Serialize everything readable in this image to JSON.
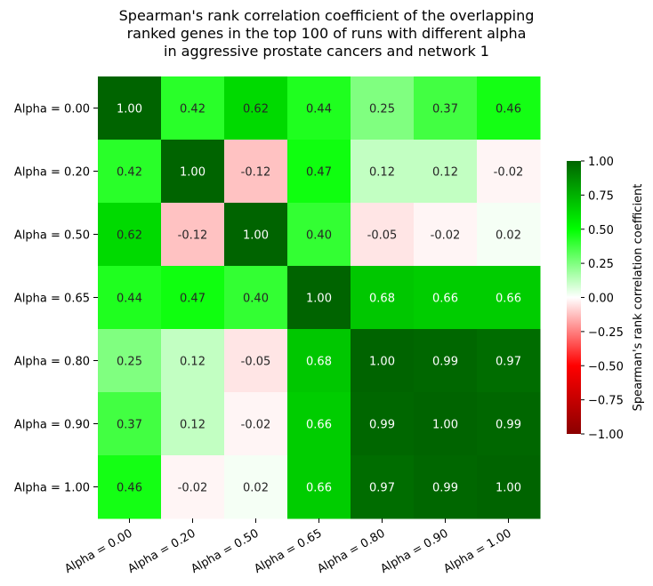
{
  "chart_data": {
    "type": "heatmap",
    "title_lines": [
      "Spearman's rank correlation coefficient of the overlapping",
      "ranked genes in the top 100 of runs with different alpha",
      "in aggressive prostate cancers and network 1"
    ],
    "row_labels": [
      "Alpha = 0.00",
      "Alpha = 0.20",
      "Alpha = 0.50",
      "Alpha = 0.65",
      "Alpha = 0.80",
      "Alpha = 0.90",
      "Alpha = 1.00"
    ],
    "col_labels": [
      "Alpha = 0.00",
      "Alpha = 0.20",
      "Alpha = 0.50",
      "Alpha = 0.65",
      "Alpha = 0.80",
      "Alpha = 0.90",
      "Alpha = 1.00"
    ],
    "values": [
      [
        1.0,
        0.42,
        0.62,
        0.44,
        0.25,
        0.37,
        0.46
      ],
      [
        0.42,
        1.0,
        -0.12,
        0.47,
        0.12,
        0.12,
        -0.02
      ],
      [
        0.62,
        -0.12,
        1.0,
        0.4,
        -0.05,
        -0.02,
        0.02
      ],
      [
        0.44,
        0.47,
        0.4,
        1.0,
        0.68,
        0.66,
        0.66
      ],
      [
        0.25,
        0.12,
        -0.05,
        0.68,
        1.0,
        0.99,
        0.97
      ],
      [
        0.37,
        0.12,
        -0.02,
        0.66,
        0.99,
        1.0,
        0.99
      ],
      [
        0.46,
        -0.02,
        0.02,
        0.66,
        0.97,
        0.99,
        1.0
      ]
    ],
    "value_format_decimals": 2,
    "vmin": -1.0,
    "vmax": 1.0,
    "colormap": [
      "#8b0000",
      "#ff0000",
      "#ffffff",
      "#00ff00",
      "#006400"
    ],
    "colorbar": {
      "label": "Spearman's rank correlation coefficient",
      "ticks": [
        1.0,
        0.75,
        0.5,
        0.25,
        0.0,
        -0.25,
        -0.5,
        -0.75,
        -1.0
      ],
      "tick_labels": [
        "1.00",
        "0.75",
        "0.50",
        "0.25",
        "0.00",
        "−0.25",
        "−0.50",
        "−0.75",
        "−1.00"
      ]
    }
  }
}
